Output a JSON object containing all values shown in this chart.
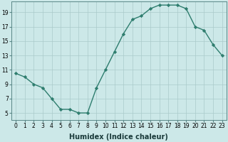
{
  "x": [
    0,
    1,
    2,
    3,
    4,
    5,
    6,
    7,
    8,
    9,
    10,
    11,
    12,
    13,
    14,
    15,
    16,
    17,
    18,
    19,
    20,
    21,
    22,
    23
  ],
  "y": [
    10.5,
    10.0,
    9.0,
    8.5,
    7.0,
    5.5,
    5.5,
    5.0,
    5.0,
    8.5,
    11.0,
    13.5,
    16.0,
    18.0,
    18.5,
    19.5,
    20.0,
    20.0,
    20.0,
    19.5,
    17.0,
    16.5,
    14.5,
    13.0
  ],
  "line_color": "#2e7d6e",
  "marker": "D",
  "marker_size": 2.2,
  "bg_color": "#cce8e8",
  "grid_color": "#aacaca",
  "xlabel": "Humidex (Indice chaleur)",
  "xlim": [
    -0.5,
    23.5
  ],
  "ylim": [
    4.0,
    20.5
  ],
  "xticks": [
    0,
    1,
    2,
    3,
    4,
    5,
    6,
    7,
    8,
    9,
    10,
    11,
    12,
    13,
    14,
    15,
    16,
    17,
    18,
    19,
    20,
    21,
    22,
    23
  ],
  "yticks": [
    5,
    7,
    9,
    11,
    13,
    15,
    17,
    19
  ],
  "tick_fontsize": 5.5,
  "xlabel_fontsize": 7.0,
  "line_width": 1.0
}
